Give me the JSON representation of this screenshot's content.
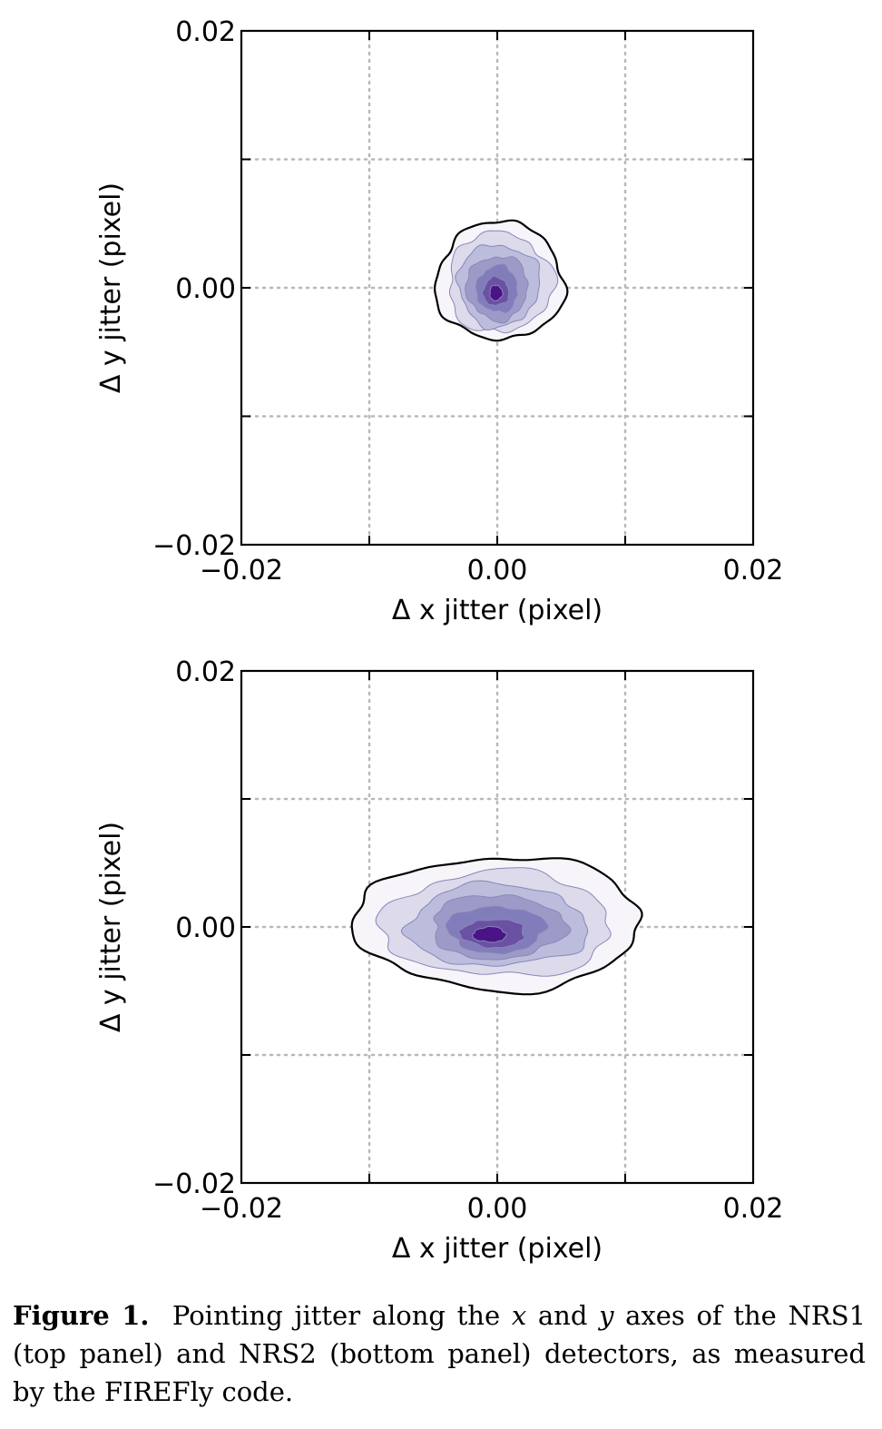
{
  "chart_data": [
    {
      "type": "contour",
      "panel": "NRS1",
      "xlabel": "Δ x jitter (pixel)",
      "ylabel": "Δ y jitter (pixel)",
      "xlim": [
        -0.02,
        0.02
      ],
      "ylim": [
        -0.02,
        0.02
      ],
      "xticks": [
        -0.02,
        0.0,
        0.02
      ],
      "yticks": [
        -0.02,
        0.0,
        0.02
      ],
      "xtick_labels": [
        "−0.02",
        "0.00",
        "0.02"
      ],
      "ytick_labels": [
        "−0.02",
        "0.00",
        "0.02"
      ],
      "grid": true,
      "colormap": "purples",
      "distribution": {
        "center": [
          0.0,
          0.0
        ],
        "x_extent": [
          -0.005,
          0.005
        ],
        "y_extent": [
          -0.004,
          0.0055
        ]
      },
      "levels": [
        {
          "rx": 0.005,
          "ry": 0.0046,
          "cx": 0.0002,
          "cy": 0.0005,
          "fill": "#f7f5fa"
        },
        {
          "rx": 0.0041,
          "ry": 0.0039,
          "cx": 0.0002,
          "cy": 0.0004,
          "fill": "#dcdaeb"
        },
        {
          "rx": 0.0032,
          "ry": 0.0032,
          "cx": 0.0001,
          "cy": 0.0002,
          "fill": "#bcbddc"
        },
        {
          "rx": 0.0024,
          "ry": 0.0025,
          "cx": 0.0,
          "cy": 0.0,
          "fill": "#9e9ac8"
        },
        {
          "rx": 0.0016,
          "ry": 0.0018,
          "cx": 0.0,
          "cy": -0.0001,
          "fill": "#807dba"
        },
        {
          "rx": 0.001,
          "ry": 0.0011,
          "cx": -0.0001,
          "cy": -0.0003,
          "fill": "#6a51a3"
        },
        {
          "rx": 0.0005,
          "ry": 0.0006,
          "cx": -0.0001,
          "cy": -0.0004,
          "fill": "#4a1486"
        }
      ]
    },
    {
      "type": "contour",
      "panel": "NRS2",
      "xlabel": "Δ x jitter (pixel)",
      "ylabel": "Δ y jitter (pixel)",
      "xlim": [
        -0.02,
        0.02
      ],
      "ylim": [
        -0.02,
        0.02
      ],
      "xticks": [
        -0.02,
        0.0,
        0.02
      ],
      "yticks": [
        -0.02,
        0.0,
        0.02
      ],
      "xtick_labels": [
        "−0.02",
        "0.00",
        "0.02"
      ],
      "ytick_labels": [
        "−0.02",
        "0.00",
        "0.02"
      ],
      "grid": true,
      "colormap": "purples",
      "distribution": {
        "center": [
          0.0,
          0.0
        ],
        "x_extent": [
          -0.012,
          0.012
        ],
        "y_extent": [
          -0.0045,
          0.006
        ]
      },
      "levels": [
        {
          "rx": 0.0112,
          "ry": 0.0052,
          "cx": 0.0001,
          "cy": 0.0003,
          "fill": "#f7f5fa"
        },
        {
          "rx": 0.009,
          "ry": 0.0041,
          "cx": 0.0,
          "cy": 0.0002,
          "fill": "#dcdaeb"
        },
        {
          "rx": 0.007,
          "ry": 0.0032,
          "cx": 0.0,
          "cy": 0.0001,
          "fill": "#bcbddc"
        },
        {
          "rx": 0.0052,
          "ry": 0.0025,
          "cx": 0.0,
          "cy": 0.0,
          "fill": "#9e9ac8"
        },
        {
          "rx": 0.0038,
          "ry": 0.0018,
          "cx": -0.0001,
          "cy": -0.0002,
          "fill": "#807dba"
        },
        {
          "rx": 0.0025,
          "ry": 0.0011,
          "cx": -0.0003,
          "cy": -0.0005,
          "fill": "#6a51a3"
        },
        {
          "rx": 0.0013,
          "ry": 0.0006,
          "cx": -0.0006,
          "cy": -0.0006,
          "fill": "#4a1486"
        }
      ]
    }
  ],
  "caption": {
    "label": "Figure 1.",
    "text_a": "Pointing jitter along the ",
    "x_symbol": "x",
    "text_b": " and ",
    "y_symbol": "y",
    "text_c": " axes of the NRS1 (top panel) and NRS2 (bottom panel) detectors, as measured by the FIREFly code."
  }
}
